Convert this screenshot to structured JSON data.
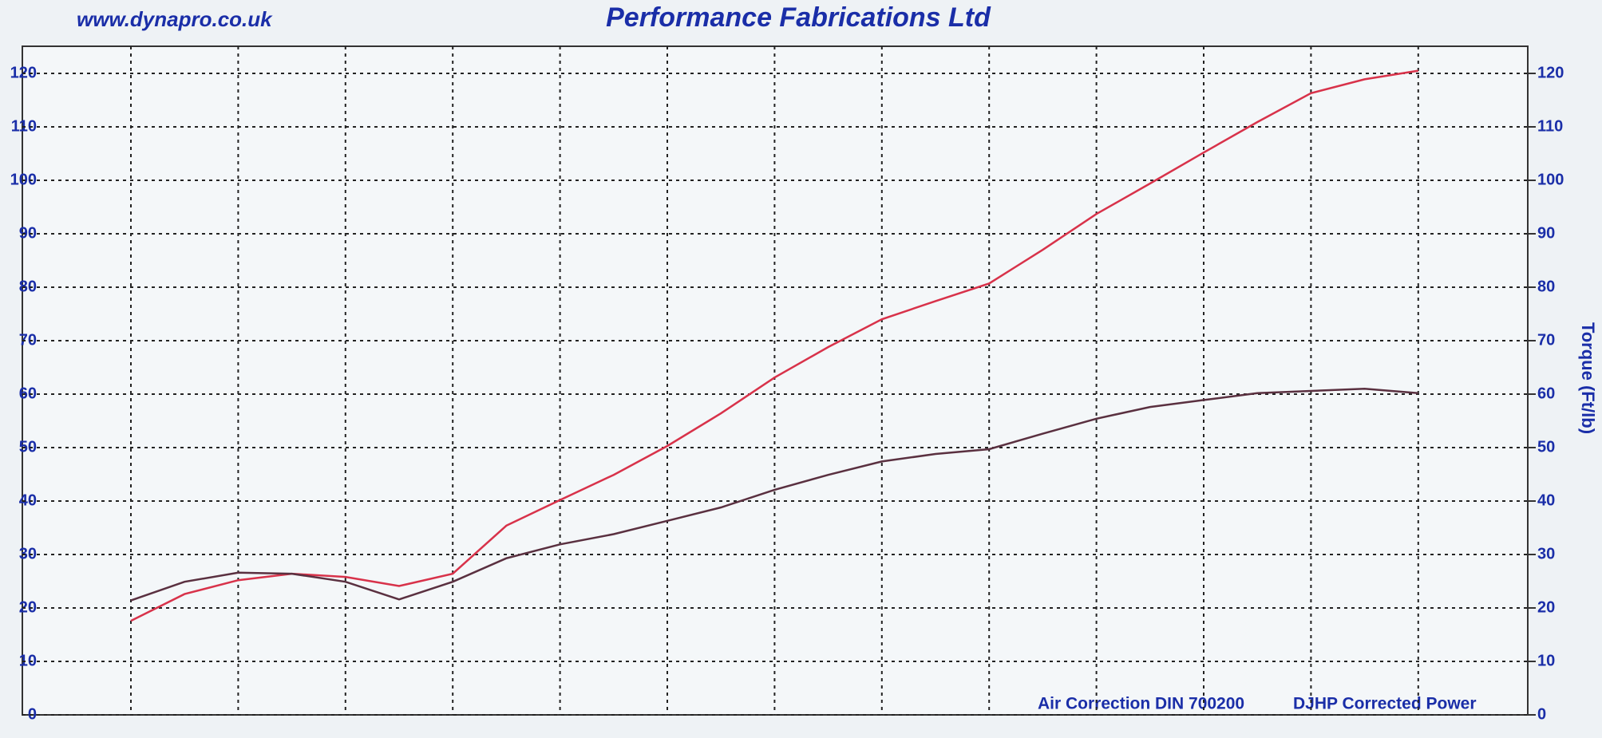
{
  "chart_data": {
    "type": "line",
    "title": "Performance Fabrications Ltd",
    "subtitle": "www.dynapro.co.uk",
    "y2_label": "Torque (Ft/lb)",
    "annotations": [
      "Air Correction DIN 700200",
      "DJHP Corrected Power"
    ],
    "categories": [
      null,
      null,
      null,
      null,
      null,
      null,
      null,
      null,
      null,
      null,
      null,
      null,
      null,
      null,
      null,
      null,
      null,
      null,
      null,
      null,
      null,
      null,
      null,
      null,
      null
    ],
    "series": [
      {
        "name": "Power",
        "color": "#d8324a",
        "axis": "y",
        "values": [
          17.6,
          22.6,
          25.2,
          26.4,
          25.8,
          24.1,
          26.4,
          35.4,
          40.2,
          44.9,
          50.3,
          56.4,
          63.1,
          68.8,
          74.0,
          77.4,
          80.7,
          87.0,
          93.7,
          99.4,
          105.2,
          110.9,
          116.3,
          118.9,
          120.5
        ]
      },
      {
        "name": "Torque",
        "color": "#5a3040",
        "axis": "y2",
        "values": [
          21.4,
          24.9,
          26.6,
          26.4,
          24.9,
          21.6,
          24.9,
          29.3,
          31.9,
          33.8,
          36.3,
          38.8,
          42.1,
          44.9,
          47.4,
          48.8,
          49.7,
          52.6,
          55.4,
          57.6,
          58.9,
          60.2,
          60.6,
          61.0,
          60.2
        ]
      }
    ],
    "ylim": [
      0,
      120
    ],
    "yticks": [
      0,
      10,
      20,
      30,
      40,
      50,
      60,
      70,
      80,
      90,
      100,
      110,
      120
    ],
    "y2lim": [
      0,
      120
    ],
    "y2ticks": [
      0,
      10,
      20,
      30,
      40,
      50,
      60,
      70,
      80,
      90,
      100,
      110,
      120
    ],
    "grid": true
  }
}
